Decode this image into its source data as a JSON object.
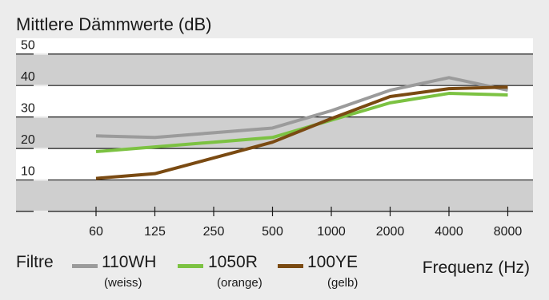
{
  "chart_data": {
    "type": "line",
    "title": "Mittlere Dämmwerte (dB)",
    "xlabel": "Frequenz (Hz)",
    "categories": [
      "60",
      "125",
      "250",
      "500",
      "1000",
      "2000",
      "4000",
      "8000"
    ],
    "yticks": [
      10,
      20,
      30,
      40,
      50
    ],
    "ylim": [
      0,
      55
    ],
    "grid": "horizontal bands",
    "legend_title": "Filtre",
    "legend_position": "bottom",
    "series": [
      {
        "name": "110WH",
        "note": "(weiss)",
        "color": "#9b9b9b",
        "values": [
          24,
          23.5,
          25,
          26.5,
          32,
          38.5,
          42.5,
          38.5
        ]
      },
      {
        "name": "1050R",
        "note": "(orange)",
        "color": "#7cc242",
        "values": [
          19,
          20.5,
          22,
          23.5,
          29,
          34.5,
          37.5,
          37
        ]
      },
      {
        "name": "100YE",
        "note": "(gelb)",
        "color": "#7a4a12",
        "values": [
          10.5,
          12,
          17,
          22,
          29.5,
          36.5,
          39,
          39.5
        ]
      }
    ]
  }
}
